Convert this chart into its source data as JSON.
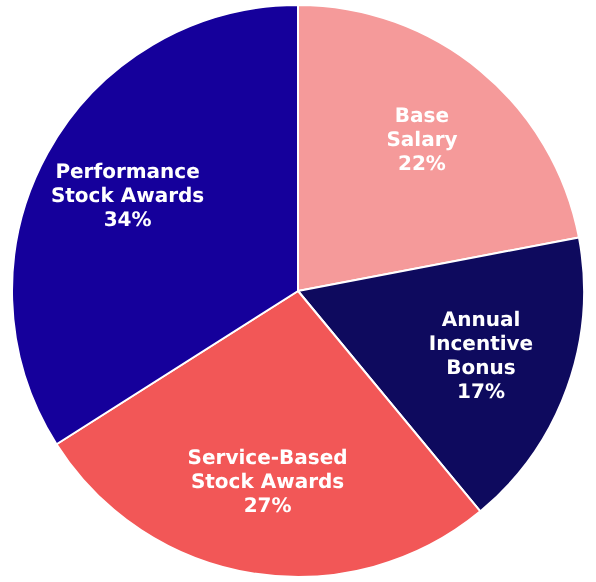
{
  "chart_data": {
    "type": "pie",
    "categories": [
      "Base Salary",
      "Annual Incentive Bonus",
      "Service-Based Stock Awards",
      "Performance Stock Awards"
    ],
    "values": [
      22,
      17,
      27,
      34
    ],
    "colors": [
      "#f59a9a",
      "#0e0a5e",
      "#f25757",
      "#15009b"
    ],
    "value_labels": [
      "22%",
      "17%",
      "27%",
      "34%"
    ],
    "legend": false
  }
}
